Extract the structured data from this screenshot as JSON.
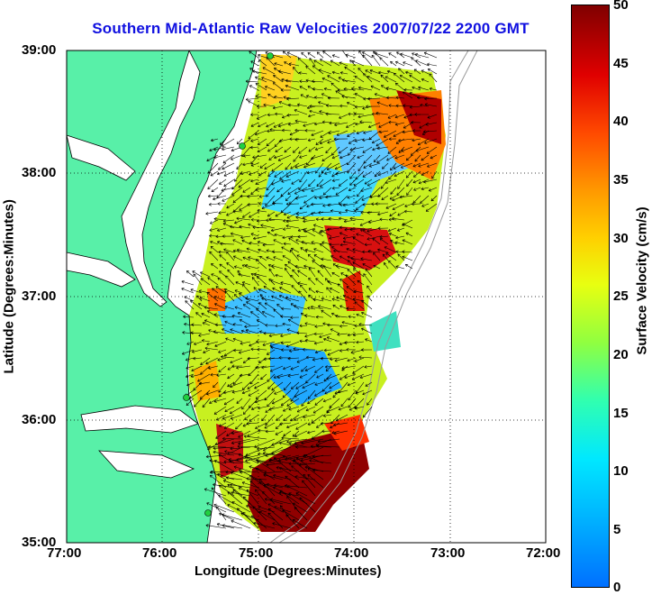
{
  "title": "Southern Mid-Atlantic Raw Velocities 2007/07/22 2200 GMT",
  "axes": {
    "xlabel": "Longitude (Degrees:Minutes)",
    "ylabel": "Latitude (Degrees:Minutes)",
    "x_ticks": [
      "77:00",
      "76:00",
      "75:00",
      "74:00",
      "73:00",
      "72:00"
    ],
    "y_ticks": [
      "39:00",
      "38:00",
      "37:00",
      "36:00",
      "35:00"
    ]
  },
  "colorbar": {
    "label": "Surface Velocity (cm/s)",
    "ticks": [
      "50",
      "45",
      "40",
      "35",
      "30",
      "25",
      "20",
      "15",
      "10",
      "5",
      "0"
    ]
  },
  "colors": {
    "land": "#58f0a8",
    "ocean": "#ffffff",
    "title": "#1010e0"
  }
}
